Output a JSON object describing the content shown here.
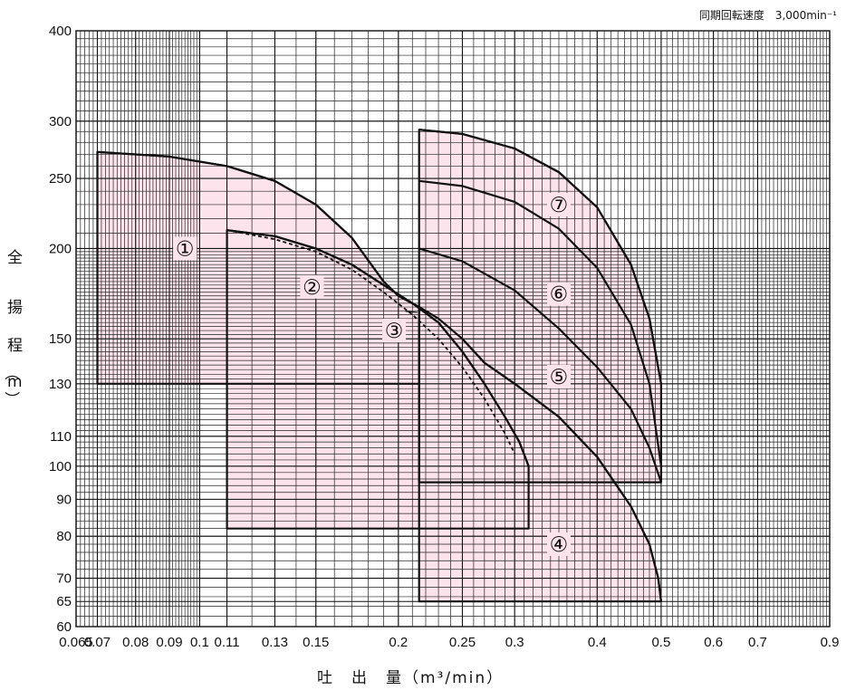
{
  "note": "同期回転速度　3,000min⁻¹",
  "chart_data": {
    "type": "area",
    "x_scale": "log",
    "y_scale": "log",
    "xlim": [
      0.065,
      0.9
    ],
    "ylim": [
      60,
      400
    ],
    "xlabel": "吐　出　量（m³/min）",
    "ylabel": [
      "全",
      "揚",
      "程",
      "（",
      "m",
      "）"
    ],
    "x_ticks": [
      {
        "value": 0.065,
        "label": "0.065"
      },
      {
        "value": 0.07,
        "label": "0.07"
      },
      {
        "value": 0.08,
        "label": "0.08"
      },
      {
        "value": 0.09,
        "label": "0.09"
      },
      {
        "value": 0.1,
        "label": "0.1"
      },
      {
        "value": 0.11,
        "label": "0.11"
      },
      {
        "value": 0.13,
        "label": "0.13"
      },
      {
        "value": 0.15,
        "label": "0.15"
      },
      {
        "value": 0.2,
        "label": "0.2"
      },
      {
        "value": 0.25,
        "label": "0.25"
      },
      {
        "value": 0.3,
        "label": "0.3"
      },
      {
        "value": 0.4,
        "label": "0.4"
      },
      {
        "value": 0.5,
        "label": "0.5"
      },
      {
        "value": 0.6,
        "label": "0.6"
      },
      {
        "value": 0.7,
        "label": "0.7"
      },
      {
        "value": 0.9,
        "label": "0.9"
      }
    ],
    "y_ticks": [
      {
        "value": 60,
        "label": "60"
      },
      {
        "value": 65,
        "label": "65"
      },
      {
        "value": 70,
        "label": "70"
      },
      {
        "value": 80,
        "label": "80"
      },
      {
        "value": 90,
        "label": "90"
      },
      {
        "value": 100,
        "label": "100"
      },
      {
        "value": 110,
        "label": "110"
      },
      {
        "value": 130,
        "label": "130"
      },
      {
        "value": 150,
        "label": "150"
      },
      {
        "value": 200,
        "label": "200"
      },
      {
        "value": 250,
        "label": "250"
      },
      {
        "value": 300,
        "label": "300"
      },
      {
        "value": 400,
        "label": "400"
      }
    ],
    "grid": true,
    "fill_color": "#fde4ec",
    "line_color": "#111111",
    "regions": [
      {
        "label": "①",
        "outline": [
          [
            0.07,
            130
          ],
          [
            0.07,
            272
          ],
          [
            0.09,
            268
          ],
          [
            0.11,
            260
          ],
          [
            0.13,
            248
          ],
          [
            0.15,
            230
          ],
          [
            0.17,
            207
          ],
          [
            0.19,
            180
          ],
          [
            0.2,
            172
          ],
          [
            0.215,
            166
          ],
          [
            0.215,
            130
          ]
        ],
        "label_pos": [
          0.095,
          200
        ]
      },
      {
        "label": "②",
        "outline": [
          [
            0.11,
            82
          ],
          [
            0.11,
            212
          ],
          [
            0.13,
            208
          ],
          [
            0.15,
            200
          ],
          [
            0.17,
            190
          ],
          [
            0.19,
            178
          ],
          [
            0.21,
            168
          ],
          [
            0.23,
            158
          ],
          [
            0.25,
            144
          ],
          [
            0.27,
            130
          ],
          [
            0.29,
            117
          ],
          [
            0.305,
            108
          ],
          [
            0.315,
            100
          ],
          [
            0.315,
            82
          ]
        ],
        "label_pos": [
          0.15,
          175
        ]
      },
      {
        "label": "④",
        "outline": [
          [
            0.215,
            65
          ],
          [
            0.215,
            166
          ],
          [
            0.23,
            160
          ],
          [
            0.25,
            150
          ],
          [
            0.27,
            139
          ],
          [
            0.3,
            130
          ],
          [
            0.35,
            117
          ],
          [
            0.4,
            103
          ],
          [
            0.45,
            88
          ],
          [
            0.48,
            78
          ],
          [
            0.495,
            70
          ],
          [
            0.5,
            65
          ]
        ],
        "label_pos": [
          0.35,
          78
        ]
      },
      {
        "label": "⑦",
        "outline": [
          [
            0.215,
            95
          ],
          [
            0.215,
            292
          ],
          [
            0.25,
            288
          ],
          [
            0.3,
            275
          ],
          [
            0.35,
            255
          ],
          [
            0.4,
            228
          ],
          [
            0.45,
            190
          ],
          [
            0.48,
            160
          ],
          [
            0.5,
            130
          ],
          [
            0.5,
            95
          ]
        ],
        "label_pos": [
          0.35,
          230
        ]
      }
    ],
    "series": [
      {
        "name": "①",
        "dashed": false,
        "points": [
          [
            0.07,
            272
          ],
          [
            0.09,
            268
          ],
          [
            0.11,
            260
          ],
          [
            0.13,
            248
          ],
          [
            0.15,
            230
          ],
          [
            0.17,
            207
          ],
          [
            0.19,
            180
          ],
          [
            0.2,
            172
          ],
          [
            0.215,
            166
          ]
        ]
      },
      {
        "name": "②",
        "dashed": false,
        "points": [
          [
            0.11,
            212
          ],
          [
            0.13,
            208
          ],
          [
            0.15,
            200
          ],
          [
            0.17,
            190
          ],
          [
            0.19,
            178
          ],
          [
            0.21,
            168
          ],
          [
            0.23,
            158
          ],
          [
            0.25,
            144
          ],
          [
            0.27,
            130
          ],
          [
            0.29,
            117
          ],
          [
            0.305,
            108
          ],
          [
            0.315,
            100
          ]
        ]
      },
      {
        "name": "③",
        "dashed": true,
        "points": [
          [
            0.11,
            212
          ],
          [
            0.13,
            206
          ],
          [
            0.15,
            198
          ],
          [
            0.17,
            187
          ],
          [
            0.19,
            174
          ],
          [
            0.21,
            162
          ],
          [
            0.23,
            150
          ],
          [
            0.25,
            137
          ],
          [
            0.27,
            124
          ],
          [
            0.29,
            111
          ],
          [
            0.3,
            104
          ]
        ]
      },
      {
        "name": "④",
        "dashed": false,
        "points": [
          [
            0.25,
            150
          ],
          [
            0.27,
            139
          ],
          [
            0.3,
            130
          ],
          [
            0.35,
            117
          ],
          [
            0.4,
            103
          ],
          [
            0.45,
            88
          ],
          [
            0.48,
            78
          ],
          [
            0.495,
            70
          ],
          [
            0.5,
            65
          ]
        ]
      },
      {
        "name": "⑤",
        "dashed": false,
        "points": [
          [
            0.215,
            200
          ],
          [
            0.25,
            192
          ],
          [
            0.3,
            175
          ],
          [
            0.35,
            155
          ],
          [
            0.4,
            137
          ],
          [
            0.45,
            120
          ],
          [
            0.48,
            106
          ],
          [
            0.5,
            95
          ]
        ]
      },
      {
        "name": "⑥",
        "dashed": false,
        "points": [
          [
            0.215,
            248
          ],
          [
            0.25,
            244
          ],
          [
            0.3,
            232
          ],
          [
            0.35,
            213
          ],
          [
            0.4,
            188
          ],
          [
            0.45,
            157
          ],
          [
            0.48,
            130
          ],
          [
            0.5,
            100
          ]
        ]
      },
      {
        "name": "⑦",
        "dashed": false,
        "points": [
          [
            0.215,
            292
          ],
          [
            0.25,
            288
          ],
          [
            0.3,
            275
          ],
          [
            0.35,
            255
          ],
          [
            0.4,
            228
          ],
          [
            0.45,
            190
          ],
          [
            0.48,
            160
          ],
          [
            0.5,
            130
          ]
        ]
      }
    ],
    "annotations": [
      {
        "text": "①",
        "x": 0.095,
        "y": 200
      },
      {
        "text": "②",
        "x": 0.148,
        "y": 177
      },
      {
        "text": "③",
        "x": 0.197,
        "y": 154
      },
      {
        "text": "④",
        "x": 0.35,
        "y": 78
      },
      {
        "text": "⑤",
        "x": 0.35,
        "y": 133
      },
      {
        "text": "⑥",
        "x": 0.35,
        "y": 173
      },
      {
        "text": "⑦",
        "x": 0.35,
        "y": 230
      }
    ],
    "pointer": {
      "from": [
        0.205,
        160
      ],
      "to": [
        0.215,
        166
      ]
    }
  }
}
